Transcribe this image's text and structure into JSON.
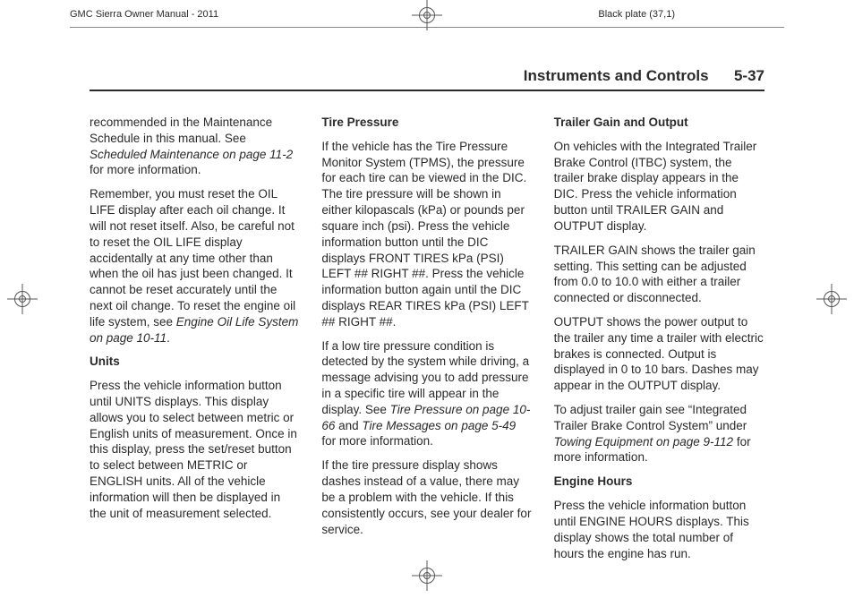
{
  "header": {
    "left": "GMC Sierra Owner Manual - 2011",
    "right": "Black plate (37,1)"
  },
  "section": {
    "title": "Instruments and Controls",
    "page": "5-37"
  },
  "col1": {
    "p1a": "recommended in the Maintenance Schedule in this manual. See ",
    "p1b": "Scheduled Maintenance on page 11-2",
    "p1c": " for more information.",
    "p2a": "Remember, you must reset the OIL LIFE display after each oil change. It will not reset itself. Also, be careful not to reset the OIL LIFE display accidentally at any time other than when the oil has just been changed. It cannot be reset accurately until the next oil change. To reset the engine oil life system, see ",
    "p2b": "Engine Oil Life System on page 10-11",
    "p2c": ".",
    "h1": "Units",
    "p3": "Press the vehicle information button until UNITS displays. This display allows you to select between metric or English units of measurement. Once in this display, press the set/reset button to select between METRIC or ENGLISH units. All of the vehicle information will then be displayed in the unit of measurement selected."
  },
  "col2": {
    "h1": "Tire Pressure",
    "p1": "If the vehicle has the Tire Pressure Monitor System (TPMS), the pressure for each tire can be viewed in the DIC. The tire pressure will be shown in either kilopascals (kPa) or pounds per square inch (psi). Press the vehicle information button until the DIC displays FRONT TIRES kPa (PSI) LEFT ## RIGHT ##. Press the vehicle information button again until the DIC displays REAR TIRES kPa (PSI) LEFT ## RIGHT ##.",
    "p2a": "If a low tire pressure condition is detected by the system while driving, a message advising you to add pressure in a specific tire will appear in the display. See ",
    "p2b": "Tire Pressure on page 10-66",
    "p2c": " and ",
    "p2d": "Tire Messages on page 5-49",
    "p2e": " for more information.",
    "p3": "If the tire pressure display shows dashes instead of a value, there may be a problem with the vehicle. If this consistently occurs, see your dealer for service."
  },
  "col3": {
    "h1": "Trailer Gain and Output",
    "p1": "On vehicles with the Integrated Trailer Brake Control (ITBC) system, the trailer brake display appears in the DIC. Press the vehicle information button until TRAILER GAIN and OUTPUT display.",
    "p2": "TRAILER GAIN shows the trailer gain setting. This setting can be adjusted from 0.0 to 10.0 with either a trailer connected or disconnected.",
    "p3": "OUTPUT shows the power output to the trailer any time a trailer with electric brakes is connected. Output is displayed in 0 to 10 bars. Dashes may appear in the OUTPUT display.",
    "p4a": "To adjust trailer gain see “Integrated Trailer Brake Control System” under ",
    "p4b": "Towing Equipment on page 9-112",
    "p4c": " for more information.",
    "h2": "Engine Hours",
    "p5": "Press the vehicle information button until ENGINE HOURS displays. This display shows the total number of hours the engine has run."
  }
}
